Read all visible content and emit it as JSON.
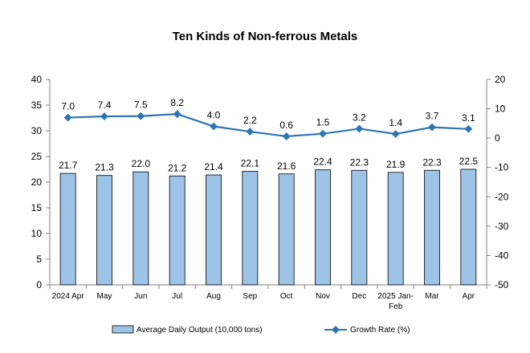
{
  "chart_data": {
    "type": "bar",
    "title": "Ten Kinds of Non-ferrous Metals",
    "categories": [
      "2024 Apr",
      "May",
      "Jun",
      "Jul",
      "Aug",
      "Sep",
      "Oct",
      "Nov",
      "Dec",
      "2025 Jan-Feb",
      "Mar",
      "Apr"
    ],
    "series": [
      {
        "name": "Average Daily Output (10,000 tons)",
        "type": "bar",
        "axis": "left",
        "color": "#9dc3e6",
        "values": [
          21.7,
          21.3,
          22.0,
          21.2,
          21.4,
          22.1,
          21.6,
          22.4,
          22.3,
          21.9,
          22.3,
          22.5
        ]
      },
      {
        "name": "Growth Rate (%)",
        "type": "line",
        "axis": "right",
        "color": "#2e75b6",
        "values": [
          7.0,
          7.4,
          7.5,
          8.2,
          4.0,
          2.2,
          0.6,
          1.5,
          3.2,
          1.4,
          3.7,
          3.1
        ]
      }
    ],
    "y_left": {
      "min": 0,
      "max": 40,
      "step": 5,
      "ticks": [
        "0",
        "5",
        "10",
        "15",
        "20",
        "25",
        "30",
        "35",
        "40"
      ]
    },
    "y_right": {
      "min": -50,
      "max": 20,
      "step": 10,
      "ticks": [
        "-50",
        "-40",
        "-30",
        "-20",
        "-10",
        "0",
        "10",
        "20"
      ]
    },
    "bar_labels": [
      "21.7",
      "21.3",
      "22.0",
      "21.2",
      "21.4",
      "22.1",
      "21.6",
      "22.4",
      "22.3",
      "21.9",
      "22.3",
      "22.5"
    ],
    "line_labels": [
      "7.0",
      "7.4",
      "7.5",
      "8.2",
      "4.0",
      "2.2",
      "0.6",
      "1.5",
      "3.2",
      "1.4",
      "3.7",
      "3.1"
    ],
    "grid": false,
    "legend_position": "bottom"
  }
}
